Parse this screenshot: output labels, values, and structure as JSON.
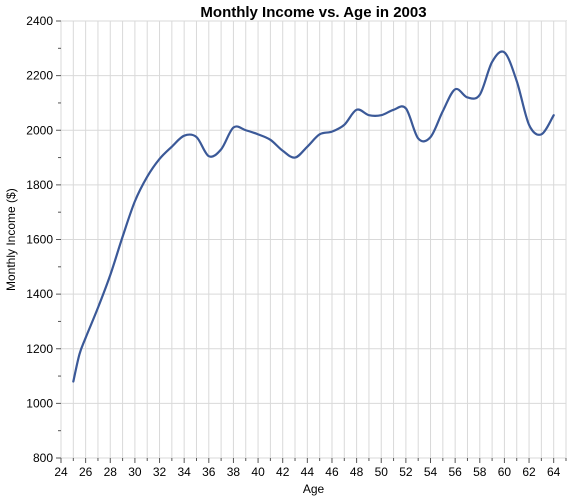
{
  "chart_data": {
    "type": "line",
    "title": "Monthly Income vs. Age in 2003",
    "xlabel": "Age",
    "ylabel": "Monthly Income ($)",
    "xlim": [
      24,
      65
    ],
    "ylim": [
      800,
      2400
    ],
    "x_ticks": [
      24,
      26,
      28,
      30,
      32,
      34,
      36,
      38,
      40,
      42,
      44,
      46,
      48,
      50,
      52,
      54,
      56,
      58,
      60,
      62,
      64
    ],
    "y_ticks": [
      800,
      1000,
      1200,
      1400,
      1600,
      1800,
      2000,
      2200,
      2400
    ],
    "grid": true,
    "legend": "none",
    "line_color": "#3b5998",
    "series": [
      {
        "x": [
          25,
          25.5,
          26,
          27,
          28,
          29,
          30,
          31,
          32,
          33,
          34,
          35,
          36,
          37,
          38,
          39,
          40,
          41,
          42,
          43,
          44,
          45,
          46,
          47,
          48,
          49,
          50,
          51,
          52,
          53,
          54,
          55,
          56,
          57,
          58,
          59,
          60,
          61,
          62,
          63,
          64
        ],
        "y": [
          1080,
          1180,
          1240,
          1350,
          1470,
          1610,
          1740,
          1830,
          1895,
          1940,
          1980,
          1975,
          1905,
          1930,
          2010,
          2000,
          1985,
          1965,
          1925,
          1900,
          1940,
          1985,
          1995,
          2020,
          2075,
          2055,
          2055,
          2075,
          2080,
          1970,
          1975,
          2070,
          2150,
          2120,
          2130,
          2250,
          2285,
          2180,
          2020,
          1985,
          2055
        ]
      }
    ]
  }
}
